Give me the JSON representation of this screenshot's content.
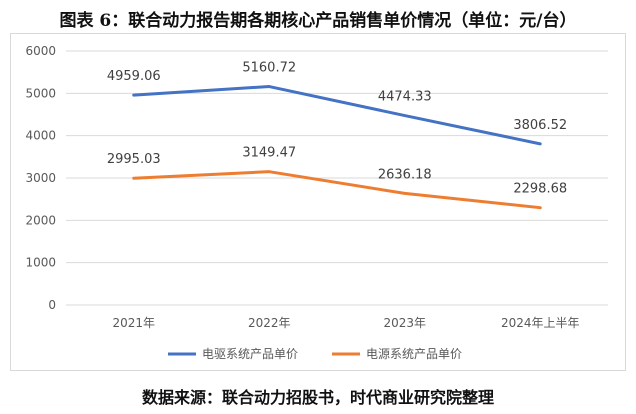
{
  "title": "图表 6：联合动力报告期各期核心产品销售单价情况（单位：元/台）",
  "source": "数据来源：联合动力招股书，时代商业研究院整理",
  "chart_data": {
    "type": "line",
    "title": "图表 6：联合动力报告期各期核心产品销售单价情况（单位：元/台）",
    "categories": [
      "2021年",
      "2022年",
      "2023年",
      "2024年上半年"
    ],
    "ylim": [
      0,
      6000
    ],
    "yticks": [
      0,
      1000,
      2000,
      3000,
      4000,
      5000,
      6000
    ],
    "grid": true,
    "legend": "bottom",
    "series": [
      {
        "name": "电驱系统产品单价",
        "values": [
          4959.06,
          5160.72,
          4474.33,
          3806.52
        ],
        "labels": [
          "4959.06",
          "5160.72",
          "4474.33",
          "3806.52"
        ],
        "color": "#4472c4"
      },
      {
        "name": "电源系统产品单价",
        "values": [
          2995.03,
          3149.47,
          2636.18,
          2298.68
        ],
        "labels": [
          "2995.03",
          "3149.47",
          "2636.18",
          "2298.68"
        ],
        "color": "#ed7d31"
      }
    ]
  }
}
